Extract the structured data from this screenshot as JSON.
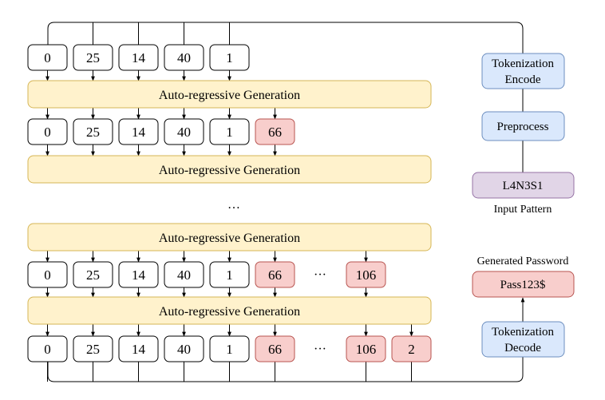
{
  "rows": [
    {
      "tokens": [
        "0",
        "25",
        "14",
        "40",
        "1"
      ],
      "generated": [],
      "ellipsis": false,
      "generated_after_ellipsis": []
    },
    {
      "tokens": [
        "0",
        "25",
        "14",
        "40",
        "1"
      ],
      "generated": [
        "66"
      ],
      "ellipsis": false,
      "generated_after_ellipsis": []
    },
    {
      "tokens": [
        "0",
        "25",
        "14",
        "40",
        "1"
      ],
      "generated": [
        "66"
      ],
      "ellipsis": true,
      "generated_after_ellipsis": [
        "106"
      ]
    },
    {
      "tokens": [
        "0",
        "25",
        "14",
        "40",
        "1"
      ],
      "generated": [
        "66"
      ],
      "ellipsis": true,
      "generated_after_ellipsis": [
        "106",
        "2"
      ]
    }
  ],
  "generation_label": "Auto-regressive Generation",
  "vertical_ellipsis": "…",
  "row_ellipsis": "···",
  "right_column": {
    "tokenization_encode": [
      "Tokenization",
      "Encode"
    ],
    "preprocess": "Preprocess",
    "input_pattern_value": "L4N3S1",
    "input_pattern_caption": "Input Pattern",
    "generated_password_caption": "Generated Password",
    "generated_password_value": "Pass123$",
    "tokenization_decode": [
      "Tokenization",
      "Decode"
    ]
  },
  "colors": {
    "token_fill": "#ffffff",
    "generated_fill": "#f8cecc",
    "generated_stroke": "#b85450",
    "generation_fill": "#fff2cc",
    "generation_stroke": "#d6b656",
    "tokenizer_fill": "#dae8fc",
    "tokenizer_stroke": "#6c8ebf",
    "pattern_fill": "#e1d5e7",
    "pattern_stroke": "#9673a6",
    "line": "#000000"
  }
}
